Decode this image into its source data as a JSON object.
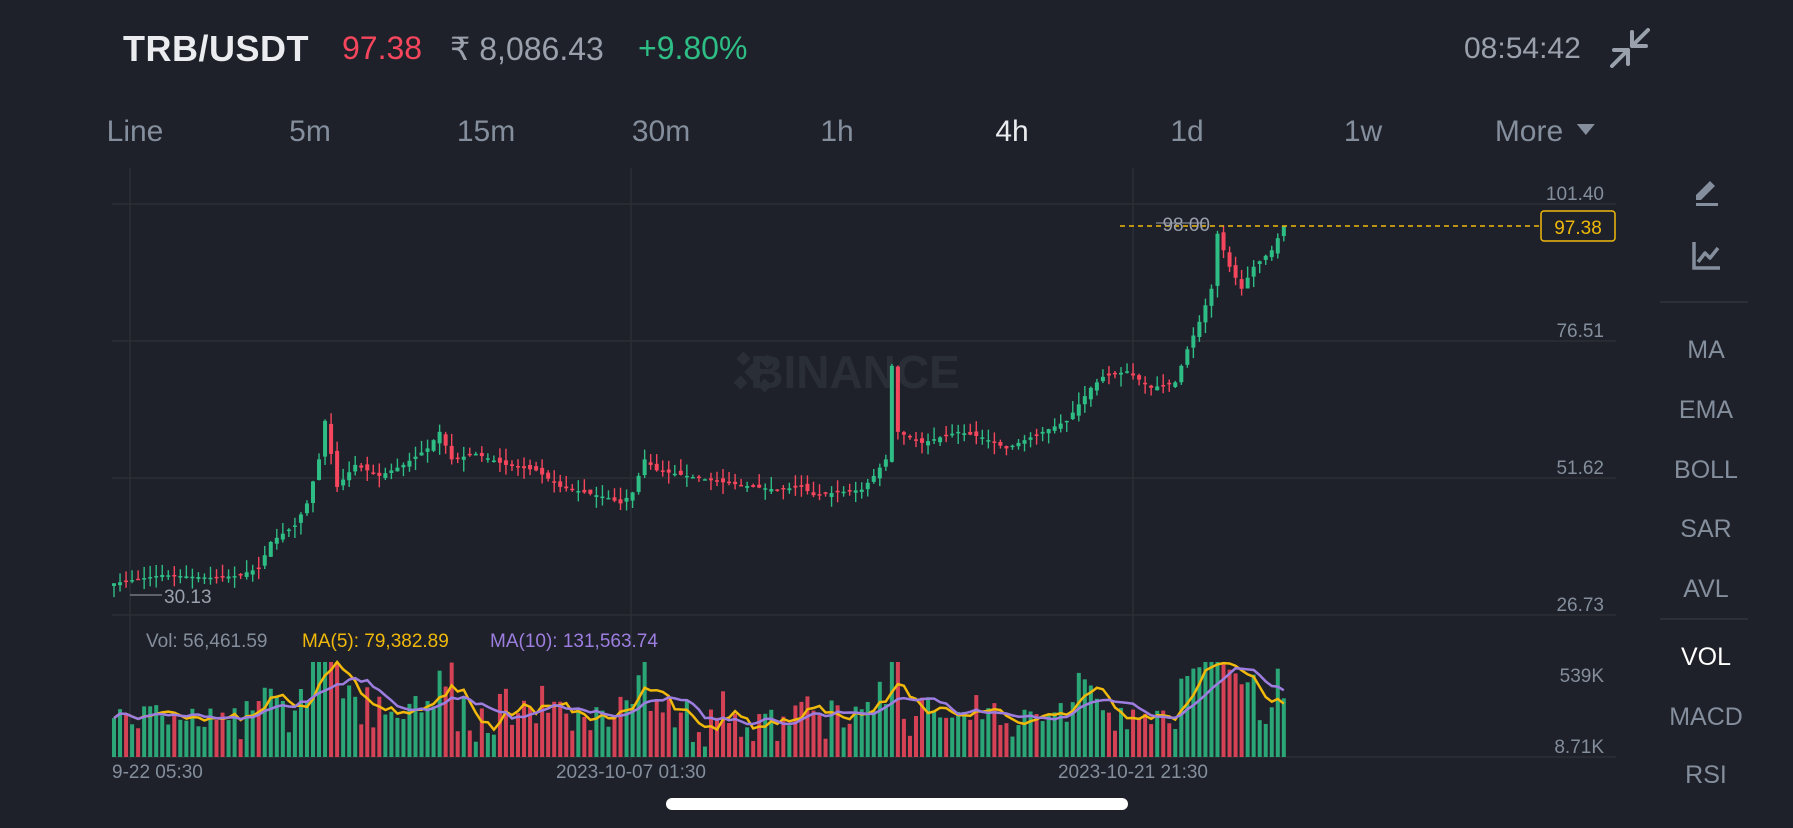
{
  "header": {
    "pair": "TRB/USDT",
    "price": "97.38",
    "price_inr": "₹ 8,086.43",
    "change": "+9.80%",
    "clock": "08:54:42",
    "collapse_icon": "collapse-arrows-icon"
  },
  "intervals": [
    {
      "label": "Line"
    },
    {
      "label": "5m"
    },
    {
      "label": "15m"
    },
    {
      "label": "30m"
    },
    {
      "label": "1h"
    },
    {
      "label": "4h",
      "active": true
    },
    {
      "label": "1d"
    },
    {
      "label": "1w"
    },
    {
      "label": "More"
    }
  ],
  "watermark": "BINANCE",
  "price_axis": [
    "101.40",
    "76.51",
    "51.62",
    "26.73"
  ],
  "current_price_tag": "97.38",
  "high_label": "98.00",
  "low_label": "30.13",
  "volume_panel": {
    "vol": "Vol: 56,461.59",
    "ma5": "MA(5): 79,382.89",
    "ma10": "MA(10): 131,563.74",
    "axis": [
      "539K",
      "8.71K"
    ]
  },
  "time_axis": [
    "9-22 05:30",
    "2023-10-07 01:30",
    "2023-10-21 21:30"
  ],
  "tools": {
    "draw_icon": "pencil-draw-icon",
    "indicator_icon": "chart-trend-icon",
    "indicators": [
      {
        "label": "MA"
      },
      {
        "label": "EMA"
      },
      {
        "label": "BOLL"
      },
      {
        "label": "SAR"
      },
      {
        "label": "AVL"
      },
      {
        "label": "VOL",
        "active": true
      },
      {
        "label": "MACD"
      },
      {
        "label": "RSI"
      }
    ]
  },
  "colors": {
    "up": "#2ebd85",
    "down": "#f6465d",
    "ma5": "#f0b90b",
    "ma10": "#9d7ee0",
    "background": "#1e2129",
    "text": "#848e9c"
  },
  "chart_data": {
    "type": "candlestick",
    "interval": "4h",
    "y_axis_ticks": [
      101.4,
      76.51,
      51.62,
      26.73
    ],
    "high": 98.0,
    "low": 30.13,
    "last": 97.38,
    "close_trend": [
      [
        0,
        32.5
      ],
      [
        8,
        34.0
      ],
      [
        16,
        33.5
      ],
      [
        20,
        33.8
      ],
      [
        24,
        35.2
      ],
      [
        26,
        40
      ],
      [
        30,
        43
      ],
      [
        32,
        47
      ],
      [
        34,
        55
      ],
      [
        35,
        62
      ],
      [
        37,
        50
      ],
      [
        40,
        54
      ],
      [
        44,
        52
      ],
      [
        48,
        54
      ],
      [
        52,
        57
      ],
      [
        54,
        60
      ],
      [
        56,
        55
      ],
      [
        60,
        56
      ],
      [
        65,
        54
      ],
      [
        70,
        53
      ],
      [
        74,
        50
      ],
      [
        78,
        49
      ],
      [
        82,
        48
      ],
      [
        84,
        47
      ],
      [
        86,
        49
      ],
      [
        88,
        55
      ],
      [
        90,
        53
      ],
      [
        95,
        52
      ],
      [
        100,
        51
      ],
      [
        106,
        50
      ],
      [
        110,
        49.5
      ],
      [
        114,
        50
      ],
      [
        116,
        48.5
      ],
      [
        120,
        49
      ],
      [
        124,
        49.5
      ],
      [
        126,
        52
      ],
      [
        128,
        55
      ],
      [
        129,
        72
      ],
      [
        130,
        60
      ],
      [
        134,
        58
      ],
      [
        140,
        60
      ],
      [
        144,
        59
      ],
      [
        148,
        57
      ],
      [
        150,
        58
      ],
      [
        154,
        60
      ],
      [
        158,
        62
      ],
      [
        160,
        65
      ],
      [
        162,
        68
      ],
      [
        164,
        70
      ],
      [
        168,
        71
      ],
      [
        172,
        68
      ],
      [
        176,
        69
      ],
      [
        178,
        75
      ],
      [
        180,
        80
      ],
      [
        182,
        86
      ],
      [
        183,
        96
      ],
      [
        185,
        90
      ],
      [
        187,
        86
      ],
      [
        189,
        90
      ],
      [
        192,
        93
      ],
      [
        194,
        97.38
      ]
    ],
    "volume_axis": [
      "539K",
      "8.71K"
    ],
    "volume_ma": {
      "MA(5)": 79382.89,
      "MA(10)": 131563.74
    },
    "volume": 56461.59
  }
}
